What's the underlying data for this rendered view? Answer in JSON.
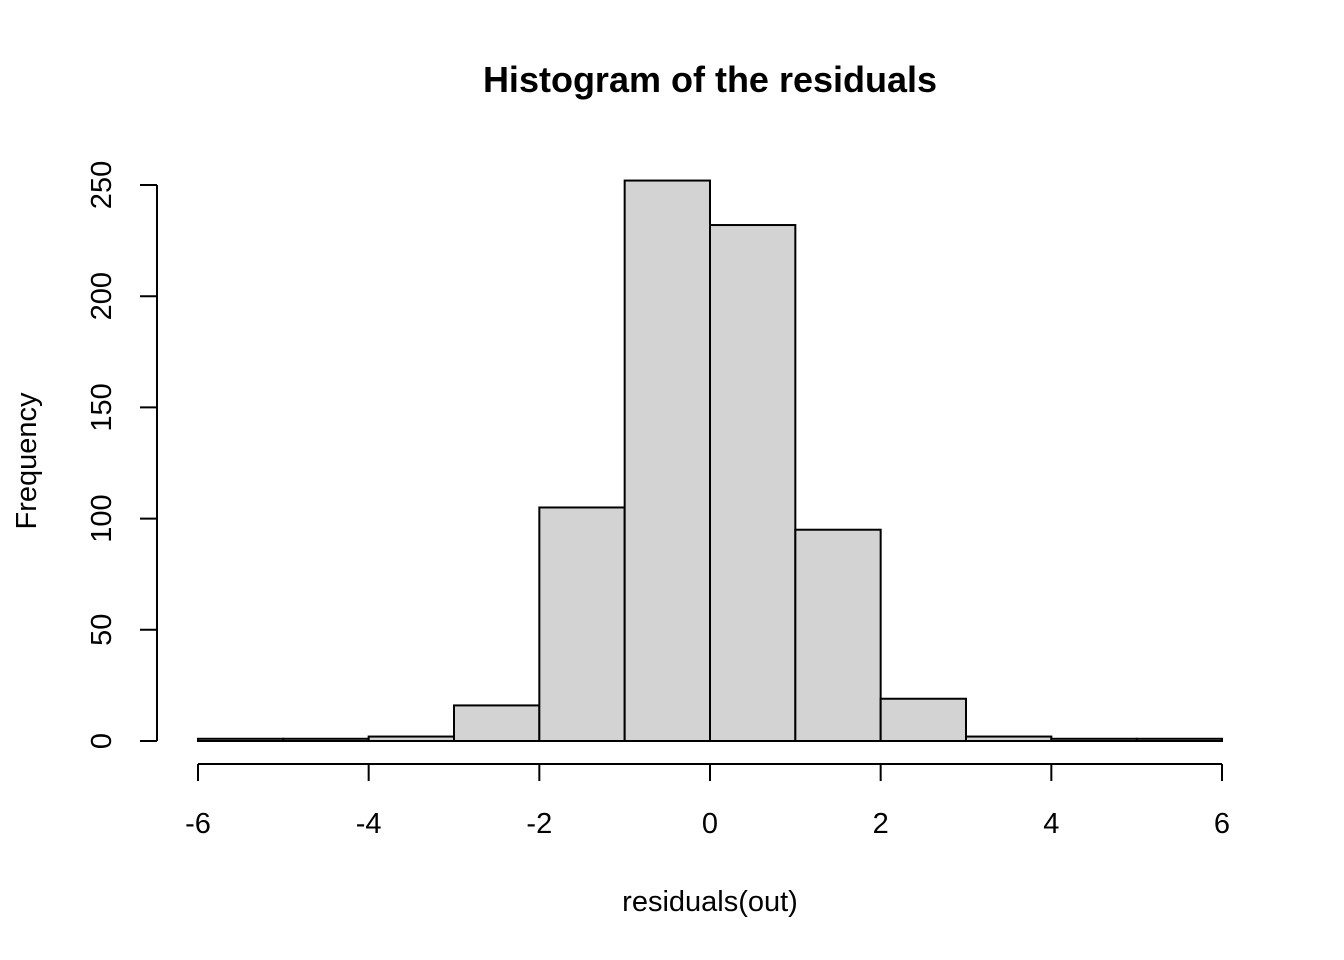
{
  "chart_data": {
    "type": "bar",
    "title": "Histogram of the residuals",
    "xlabel": "residuals(out)",
    "ylabel": "Frequency",
    "bins": [
      {
        "x0": -6,
        "x1": -5,
        "count": 1
      },
      {
        "x0": -5,
        "x1": -4,
        "count": 1
      },
      {
        "x0": -4,
        "x1": -3,
        "count": 2
      },
      {
        "x0": -3,
        "x1": -2,
        "count": 16
      },
      {
        "x0": -2,
        "x1": -1,
        "count": 105
      },
      {
        "x0": -1,
        "x1": 0,
        "count": 252
      },
      {
        "x0": 0,
        "x1": 1,
        "count": 232
      },
      {
        "x0": 1,
        "x1": 2,
        "count": 95
      },
      {
        "x0": 2,
        "x1": 3,
        "count": 19
      },
      {
        "x0": 3,
        "x1": 4,
        "count": 2
      },
      {
        "x0": 4,
        "x1": 5,
        "count": 1
      },
      {
        "x0": 5,
        "x1": 6,
        "count": 1
      }
    ],
    "xlim": [
      -6,
      6
    ],
    "ylim": [
      0,
      250
    ],
    "x_ticks": [
      -6,
      -4,
      -2,
      0,
      2,
      4,
      6
    ],
    "x_tick_labels": [
      "-6",
      "-4",
      "-2",
      "0",
      "2",
      "4",
      "6"
    ],
    "y_ticks": [
      0,
      50,
      100,
      150,
      200,
      250
    ],
    "y_tick_labels": [
      "0",
      "50",
      "100",
      "150",
      "200",
      "250"
    ],
    "grid": false,
    "bar_fill": "#d3d3d3",
    "bar_stroke": "#000000"
  }
}
